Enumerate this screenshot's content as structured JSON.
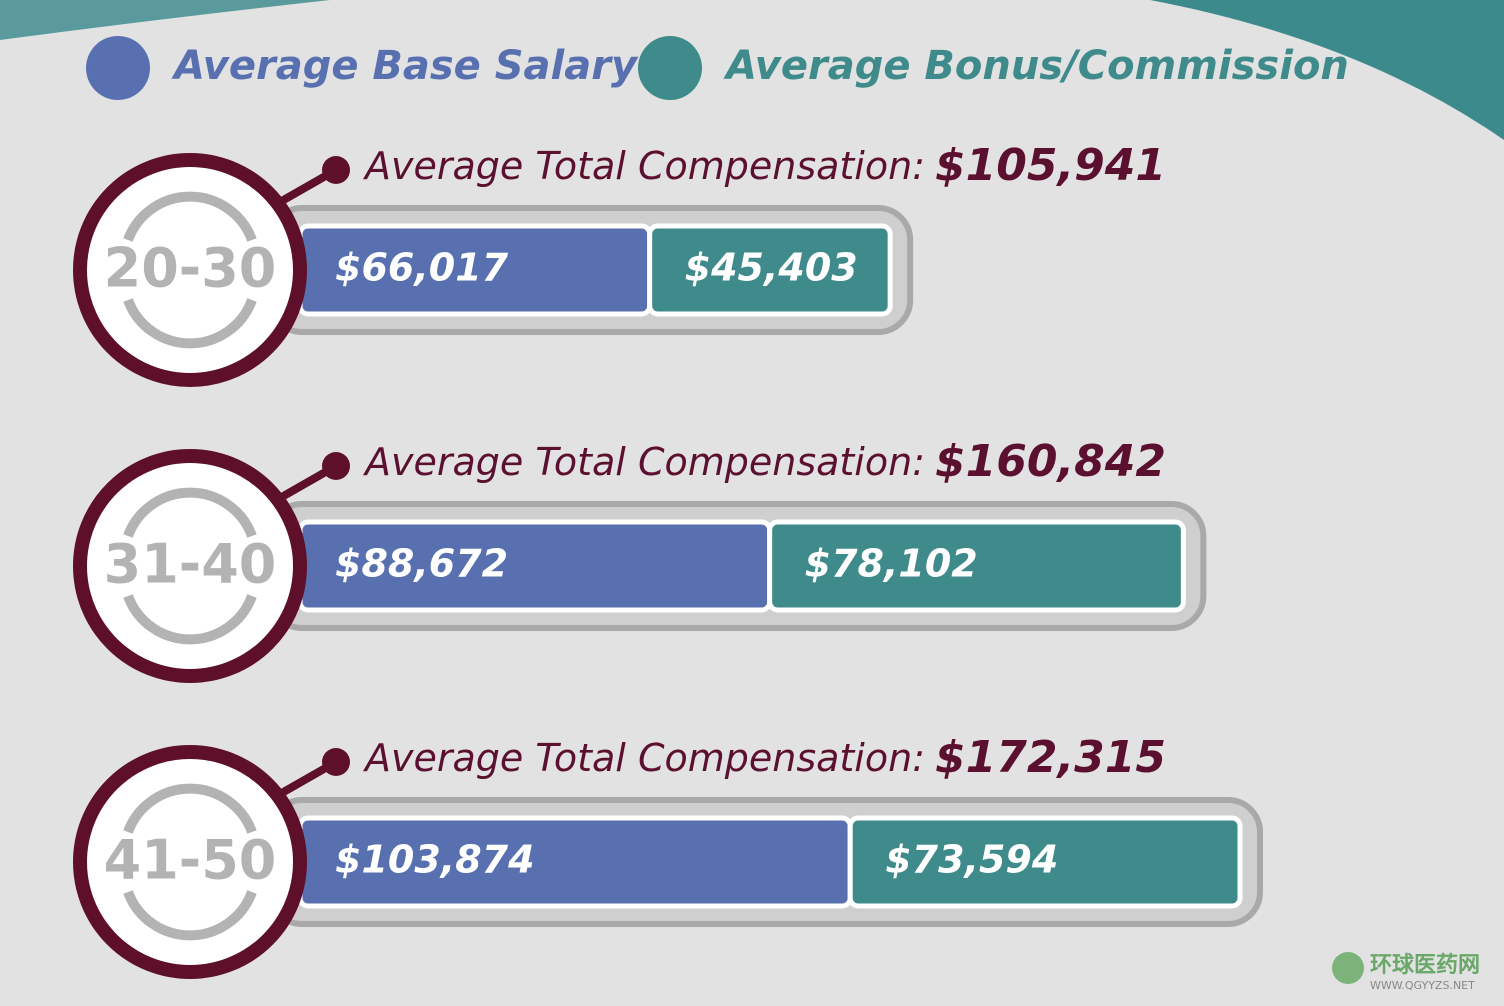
{
  "chart_data": {
    "type": "stacked-bar",
    "categories": [
      "20-30",
      "31-40",
      "41-50"
    ],
    "series": [
      {
        "name": "Average Base Salary",
        "color": "#5870b0",
        "values": [
          66017,
          88672,
          103874
        ],
        "value_labels": [
          "$66,017",
          "$88,672",
          "$103,874"
        ]
      },
      {
        "name": "Average Bonus/Commission",
        "color": "#3f8a8b",
        "values": [
          45403,
          78102,
          73594
        ],
        "value_labels": [
          "$45,403",
          "$78,102",
          "$73,594"
        ]
      }
    ],
    "total_title": "Average Total Compensation:",
    "totals": {
      "values": [
        105941,
        160842,
        172315
      ],
      "value_labels": [
        "$105,941",
        "$160,842",
        "$172,315"
      ]
    }
  },
  "watermark": {
    "title": "环球医药网",
    "url": "WWW.QGYYZS.NET"
  }
}
